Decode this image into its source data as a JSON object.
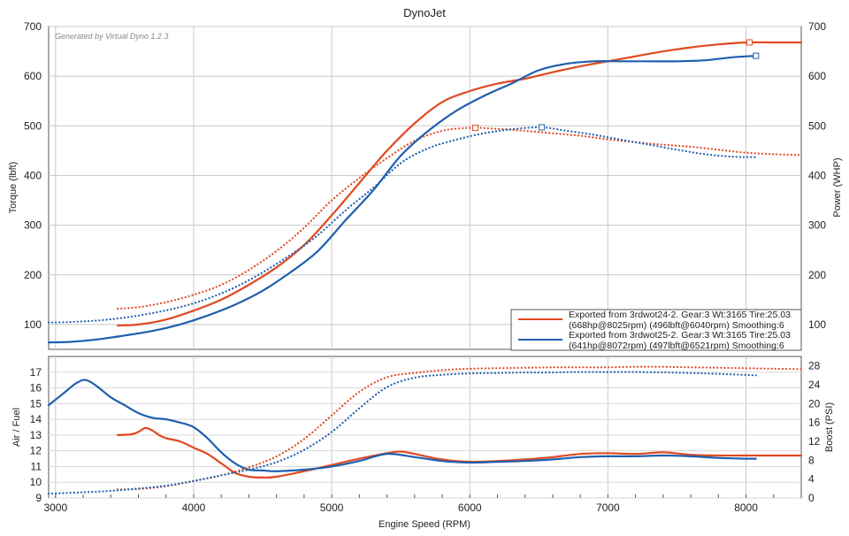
{
  "chart_data": [
    {
      "type": "line",
      "title": "DynoJet",
      "annotation": "Generated by Virtual Dyno 1.2.3",
      "xlabel": "Engine Speed (RPM)",
      "xlim": [
        2950,
        8400
      ],
      "x_ticks": [
        "3000",
        "4000",
        "5000",
        "6000",
        "7000",
        "8000"
      ],
      "ylabel_left": "Torque (lbft)",
      "ylabel_right": "Power (WHP)",
      "ylim": [
        50,
        700
      ],
      "y_ticks_left": [
        "100",
        "200",
        "300",
        "400",
        "500",
        "600",
        "700"
      ],
      "y_ticks_right": [
        "100",
        "200",
        "300",
        "400",
        "500",
        "600",
        "700"
      ],
      "grid": true,
      "legend_position": "bottom-right",
      "legend": [
        {
          "color": "#e04a22",
          "line1": "Exported from 3rdwot24-2. Gear:3 Wt:3165 Tire:25.03",
          "line2": "(668hp@8025rpm) (496lbft@6040rpm) Smoothing:6"
        },
        {
          "color": "#1f5fae",
          "line1": "Exported from 3rdwot25-2. Gear:3 Wt:3165 Tire:25.03",
          "line2": "(641hp@8072rpm) (497lbft@6521rpm) Smoothing:6"
        }
      ],
      "series": [
        {
          "kind": "power",
          "color": "#e04a22",
          "style": "solid",
          "marker": [
            8025,
            668
          ],
          "x": [
            3450,
            3600,
            3800,
            4000,
            4200,
            4400,
            4600,
            4800,
            5000,
            5200,
            5400,
            5600,
            5800,
            6000,
            6200,
            6400,
            6600,
            6800,
            7000,
            7200,
            7400,
            7600,
            7800,
            8000,
            8200,
            8400
          ],
          "y": [
            98,
            100,
            110,
            128,
            150,
            180,
            215,
            260,
            320,
            385,
            450,
            505,
            548,
            570,
            585,
            595,
            608,
            620,
            630,
            640,
            650,
            658,
            664,
            668,
            668,
            668
          ]
        },
        {
          "kind": "torque",
          "color": "#e04a22",
          "style": "dotted",
          "marker": [
            6040,
            496
          ],
          "x": [
            3450,
            3600,
            3800,
            4000,
            4200,
            4400,
            4600,
            4800,
            5000,
            5200,
            5400,
            5600,
            5800,
            6000,
            6200,
            6400,
            6600,
            6800,
            7000,
            7200,
            7400,
            7600,
            7800,
            8000,
            8200,
            8400
          ],
          "y": [
            132,
            135,
            145,
            160,
            180,
            210,
            248,
            295,
            350,
            395,
            435,
            470,
            490,
            496,
            494,
            490,
            485,
            480,
            473,
            467,
            462,
            458,
            452,
            446,
            443,
            441
          ]
        },
        {
          "kind": "power",
          "color": "#1f5fae",
          "style": "solid",
          "marker": [
            8072,
            641
          ],
          "x": [
            2950,
            3100,
            3300,
            3500,
            3700,
            3900,
            4100,
            4300,
            4500,
            4700,
            4900,
            5100,
            5300,
            5500,
            5700,
            5900,
            6100,
            6300,
            6500,
            6700,
            6900,
            7100,
            7300,
            7500,
            7700,
            7900,
            8072
          ],
          "y": [
            64,
            65,
            70,
            78,
            87,
            100,
            118,
            140,
            168,
            205,
            248,
            310,
            370,
            440,
            490,
            530,
            560,
            585,
            612,
            625,
            630,
            630,
            630,
            630,
            632,
            638,
            641
          ]
        },
        {
          "kind": "torque",
          "color": "#1f5fae",
          "style": "dotted",
          "marker": [
            6521,
            497
          ],
          "x": [
            2950,
            3100,
            3300,
            3500,
            3700,
            3900,
            4100,
            4300,
            4500,
            4700,
            4900,
            5100,
            5300,
            5500,
            5700,
            5900,
            6100,
            6300,
            6521,
            6700,
            6900,
            7100,
            7300,
            7500,
            7700,
            7900,
            8072
          ],
          "y": [
            104,
            105,
            108,
            114,
            123,
            135,
            152,
            175,
            205,
            240,
            280,
            330,
            375,
            425,
            455,
            472,
            485,
            493,
            497,
            490,
            482,
            472,
            462,
            452,
            443,
            438,
            437
          ]
        }
      ]
    },
    {
      "type": "line",
      "xlabel": "Engine Speed (RPM)",
      "xlim": [
        2950,
        8400
      ],
      "x_ticks": [
        "3000",
        "4000",
        "5000",
        "6000",
        "7000",
        "8000"
      ],
      "ylabel_left": "Air / Fuel",
      "ylabel_right": "Boost (PSI)",
      "ylim_left": [
        9,
        18
      ],
      "ylim_right": [
        0,
        30
      ],
      "y_ticks_left": [
        "9",
        "10",
        "11",
        "12",
        "13",
        "14",
        "15",
        "16",
        "17"
      ],
      "y_ticks_right": [
        "0",
        "4",
        "8",
        "12",
        "16",
        "20",
        "24",
        "28"
      ],
      "grid": true,
      "series": [
        {
          "kind": "afr",
          "color": "#e04a22",
          "style": "solid",
          "x": [
            3450,
            3550,
            3600,
            3650,
            3700,
            3750,
            3800,
            3900,
            4000,
            4100,
            4200,
            4300,
            4400,
            4500,
            4600,
            4800,
            5000,
            5200,
            5400,
            5500,
            5600,
            5800,
            6000,
            6200,
            6400,
            6600,
            6800,
            7000,
            7200,
            7400,
            7600,
            7800,
            8000,
            8200,
            8400
          ],
          "y": [
            13.0,
            13.05,
            13.2,
            13.45,
            13.3,
            13.0,
            12.8,
            12.6,
            12.2,
            11.8,
            11.2,
            10.6,
            10.35,
            10.3,
            10.35,
            10.7,
            11.1,
            11.5,
            11.85,
            11.95,
            11.8,
            11.45,
            11.3,
            11.35,
            11.45,
            11.6,
            11.8,
            11.85,
            11.8,
            11.9,
            11.75,
            11.7,
            11.7,
            11.7,
            11.7
          ]
        },
        {
          "kind": "afr",
          "color": "#1f5fae",
          "style": "solid",
          "x": [
            2950,
            3050,
            3150,
            3220,
            3300,
            3400,
            3500,
            3600,
            3700,
            3800,
            3900,
            4000,
            4100,
            4200,
            4300,
            4400,
            4500,
            4600,
            4800,
            5000,
            5200,
            5400,
            5600,
            5800,
            6000,
            6200,
            6400,
            6600,
            6800,
            7000,
            7200,
            7400,
            7600,
            7800,
            8000,
            8072
          ],
          "y": [
            14.9,
            15.6,
            16.3,
            16.5,
            16.1,
            15.4,
            14.9,
            14.4,
            14.1,
            14.0,
            13.8,
            13.5,
            12.8,
            11.9,
            11.2,
            10.8,
            10.75,
            10.7,
            10.8,
            11.0,
            11.35,
            11.8,
            11.6,
            11.35,
            11.25,
            11.3,
            11.35,
            11.45,
            11.6,
            11.65,
            11.65,
            11.7,
            11.65,
            11.55,
            11.5,
            11.5
          ]
        },
        {
          "kind": "boost",
          "color": "#e04a22",
          "style": "dotted",
          "x": [
            3450,
            3600,
            3800,
            4000,
            4200,
            4400,
            4600,
            4800,
            5000,
            5200,
            5400,
            5600,
            5800,
            6000,
            6200,
            6400,
            6600,
            6800,
            7000,
            7200,
            7400,
            7600,
            7800,
            8000,
            8200,
            8400
          ],
          "y": [
            1.8,
            1.9,
            2.5,
            3.6,
            4.8,
            6.5,
            8.8,
            12.5,
            17.5,
            22.5,
            25.6,
            26.5,
            27.1,
            27.4,
            27.5,
            27.6,
            27.7,
            27.7,
            27.7,
            27.8,
            27.8,
            27.7,
            27.6,
            27.5,
            27.4,
            27.3
          ]
        },
        {
          "kind": "boost",
          "color": "#1f5fae",
          "style": "dotted",
          "x": [
            2950,
            3200,
            3400,
            3600,
            3800,
            4000,
            4200,
            4400,
            4600,
            4800,
            5000,
            5200,
            5400,
            5600,
            5800,
            6000,
            6200,
            6400,
            6600,
            6800,
            7000,
            7200,
            7400,
            7600,
            7800,
            8072
          ],
          "y": [
            0.9,
            1.2,
            1.5,
            2.0,
            2.6,
            3.6,
            4.8,
            6.0,
            7.6,
            10.2,
            14.0,
            19.0,
            23.5,
            25.5,
            26.1,
            26.4,
            26.5,
            26.6,
            26.6,
            26.7,
            26.7,
            26.7,
            26.6,
            26.5,
            26.3,
            26.0
          ]
        }
      ]
    }
  ]
}
